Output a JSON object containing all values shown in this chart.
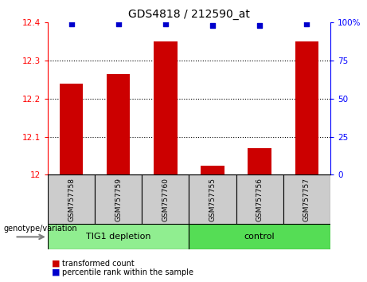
{
  "title": "GDS4818 / 212590_at",
  "categories": [
    "GSM757758",
    "GSM757759",
    "GSM757760",
    "GSM757755",
    "GSM757756",
    "GSM757757"
  ],
  "bar_values": [
    12.24,
    12.265,
    12.35,
    12.025,
    12.07,
    12.35
  ],
  "percentile_values": [
    99,
    99,
    99,
    98,
    98,
    99
  ],
  "ylim": [
    12.0,
    12.4
  ],
  "y2lim": [
    0,
    100
  ],
  "yticks": [
    12.0,
    12.1,
    12.2,
    12.3,
    12.4
  ],
  "y2ticks": [
    0,
    25,
    50,
    75,
    100
  ],
  "y2ticklabels": [
    "0",
    "25",
    "50",
    "75",
    "100%"
  ],
  "bar_color": "#cc0000",
  "dot_color": "#0000cc",
  "group1_label": "TIG1 depletion",
  "group2_label": "control",
  "group1_color": "#90ee90",
  "group2_color": "#55dd55",
  "group_separator": 3,
  "bar_width": 0.5,
  "tick_label_area_color": "#cccccc",
  "legend_red_label": "transformed count",
  "legend_blue_label": "percentile rank within the sample",
  "genotype_label": "genotype/variation"
}
